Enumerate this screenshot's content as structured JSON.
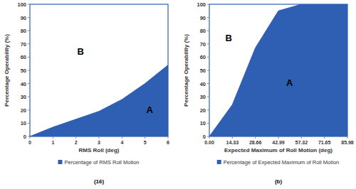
{
  "chart_data": [
    {
      "type": "area",
      "caption": "(16)",
      "x_label": "RMS Roll (deg)",
      "y_label": "Percentage Operability (%)",
      "x": [
        0,
        1,
        2,
        3,
        4,
        5,
        6
      ],
      "series": [
        {
          "name": "Percentage of RMS Roll Motion",
          "color": "#2f5fb3",
          "values": [
            0,
            7,
            13,
            19,
            28,
            40,
            54
          ]
        }
      ],
      "xlim": [
        0,
        6
      ],
      "xticks": [
        0,
        1,
        2,
        3,
        4,
        5,
        6
      ],
      "ylim": [
        0,
        100
      ],
      "yticks": [
        0,
        10,
        20,
        30,
        40,
        50,
        60,
        70,
        80,
        90,
        100
      ],
      "grid": false,
      "legend": "bottom",
      "annotations": [
        {
          "text": "A",
          "x": 5.2,
          "y": 18
        },
        {
          "text": "B",
          "x": 2.2,
          "y": 62
        }
      ]
    },
    {
      "type": "area",
      "caption": "(b)",
      "x_label": "Expected Maximum of Roll Motion (deg)",
      "y_label": "Percentage Operability (%)",
      "x": [
        0,
        14.33,
        28.66,
        42.99,
        57.32,
        71.65,
        85.98
      ],
      "series": [
        {
          "name": "Percentage of Expected Maximum of Roll Motion",
          "color": "#2f5fb3",
          "values": [
            0,
            24,
            67,
            95,
            100,
            100,
            100
          ]
        }
      ],
      "xlim": [
        0,
        85.98
      ],
      "xticks": [
        {
          "value": 0,
          "label": "0.00"
        },
        14.33,
        28.66,
        42.99,
        57.32,
        71.65,
        85.98
      ],
      "ylim": [
        0,
        100
      ],
      "yticks": [
        0,
        10,
        20,
        30,
        40,
        50,
        60,
        70,
        80,
        90,
        100
      ],
      "grid": false,
      "legend": "bottom",
      "annotations": [
        {
          "text": "A",
          "x": 50,
          "y": 38
        },
        {
          "text": "B",
          "x": 12,
          "y": 72
        }
      ]
    }
  ]
}
